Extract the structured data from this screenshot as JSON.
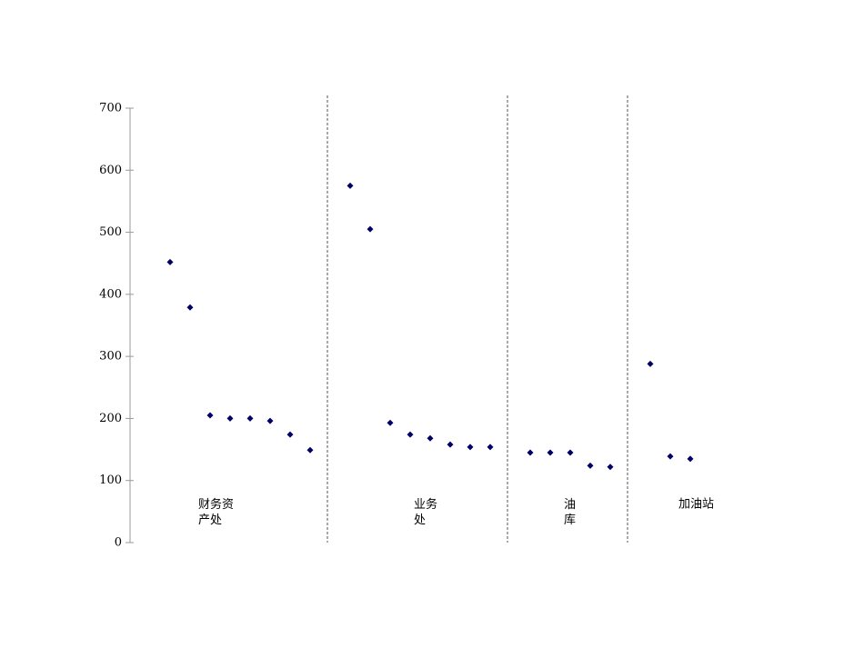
{
  "chart_data": {
    "type": "scatter",
    "series": [
      {
        "name": "财务资产处",
        "color": "#000066",
        "x": [
          2,
          3,
          4,
          5,
          6,
          7,
          8,
          9
        ],
        "values": [
          452,
          379,
          205,
          200,
          200,
          196,
          174,
          149
        ]
      },
      {
        "name": "业务处",
        "color": "#000066",
        "x": [
          11,
          12,
          13,
          14,
          15,
          16,
          17,
          18
        ],
        "values": [
          575,
          505,
          193,
          174,
          168,
          158,
          154,
          154
        ]
      },
      {
        "name": "油库",
        "color": "#000066",
        "x": [
          20,
          21,
          22,
          23,
          24
        ],
        "values": [
          145,
          145,
          145,
          124,
          122
        ]
      },
      {
        "name": "加油站",
        "color": "#000066",
        "x": [
          26,
          27,
          28
        ],
        "values": [
          288,
          139,
          135
        ]
      }
    ],
    "xlim": [
      0,
      30
    ],
    "ylim": [
      0,
      700
    ],
    "yticks": [
      0,
      100,
      200,
      300,
      400,
      500,
      600,
      700
    ]
  }
}
